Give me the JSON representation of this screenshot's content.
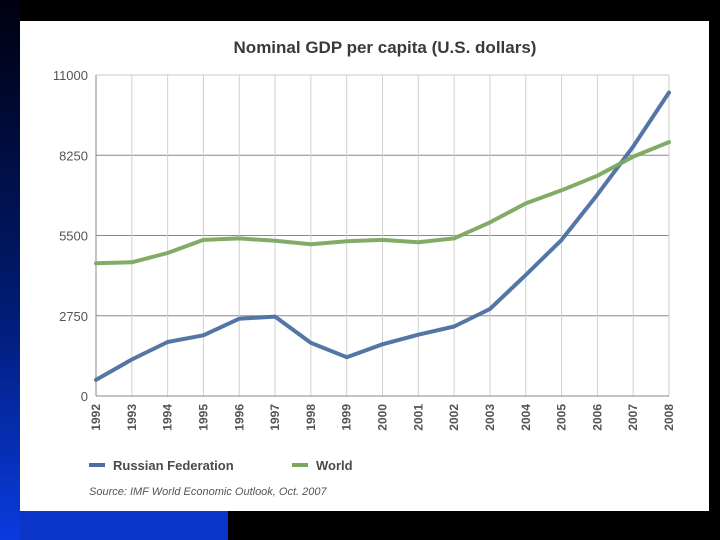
{
  "chart_data": {
    "type": "line",
    "title": "Nominal GDP per capita (U.S. dollars)",
    "xlabel": "",
    "ylabel": "",
    "categories": [
      "1992",
      "1993",
      "1994",
      "1995",
      "1996",
      "1997",
      "1998",
      "1999",
      "2000",
      "2001",
      "2002",
      "2003",
      "2004",
      "2005",
      "2006",
      "2007",
      "2008"
    ],
    "y_ticks": [
      "0",
      "2750",
      "5500",
      "8250",
      "11000"
    ],
    "ylim": [
      0,
      11000
    ],
    "grid": true,
    "legend_position": "bottom",
    "series": [
      {
        "name": "Russian Federation",
        "color": "#4a6fa0",
        "values": [
          550,
          1250,
          1850,
          2080,
          2650,
          2720,
          1820,
          1330,
          1770,
          2100,
          2380,
          2980,
          4150,
          5350,
          6900,
          8550,
          10400
        ]
      },
      {
        "name": "World",
        "color": "#7aa860",
        "values": [
          4550,
          4580,
          4900,
          5350,
          5400,
          5320,
          5200,
          5300,
          5350,
          5270,
          5400,
          5950,
          6600,
          7050,
          7550,
          8200,
          8700
        ]
      }
    ],
    "source": "Source: IMF World Economic Outlook, Oct. 2007"
  }
}
